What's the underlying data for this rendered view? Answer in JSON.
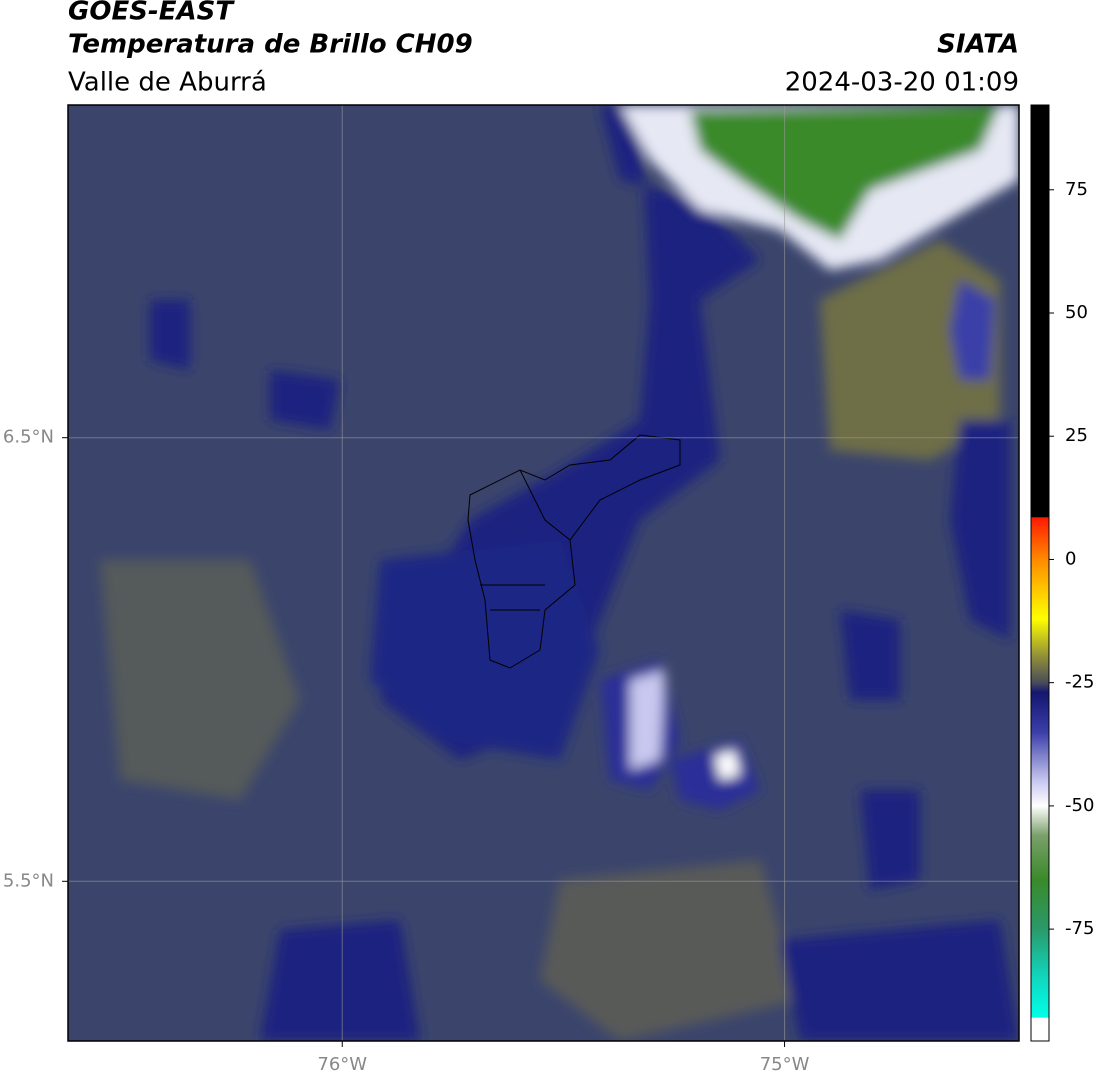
{
  "header": {
    "title": "GOES-EAST",
    "subtitle": "Temperatura de Brillo CH09",
    "region": "Valle de Aburrá",
    "source": "SIATA",
    "datetime": "2024-03-20 01:09"
  },
  "map": {
    "xlim": [
      -76.62,
      -74.47
    ],
    "ylim": [
      5.14,
      7.25
    ],
    "xticks": [
      {
        "value": -76,
        "label": "76°W"
      },
      {
        "value": -75,
        "label": "75°W"
      }
    ],
    "yticks": [
      {
        "value": 6.5,
        "label": "6.5°N"
      },
      {
        "value": 5.5,
        "label": "5.5°N"
      }
    ],
    "grid": true
  },
  "colorbar": {
    "range": [
      -97.7,
      92.2
    ],
    "ticks": [
      75,
      50,
      25,
      0,
      -25,
      -50,
      -75
    ],
    "stops": [
      {
        "value": 92.2,
        "color": "#000000"
      },
      {
        "value": 8.6,
        "color": "#000000"
      },
      {
        "value": 8.5,
        "color": "#ff1a00"
      },
      {
        "value": 0,
        "color": "#ff8a00"
      },
      {
        "value": -12,
        "color": "#ffff00"
      },
      {
        "value": -20,
        "color": "#8c8a3a"
      },
      {
        "value": -25,
        "color": "#4a4c5a"
      },
      {
        "value": -27,
        "color": "#141670"
      },
      {
        "value": -35,
        "color": "#3a3ea8"
      },
      {
        "value": -45,
        "color": "#c8c8f0"
      },
      {
        "value": -50,
        "color": "#ffffff"
      },
      {
        "value": -56,
        "color": "#7aa06a"
      },
      {
        "value": -65,
        "color": "#3a8a2a"
      },
      {
        "value": -75,
        "color": "#2a9a6a"
      },
      {
        "value": -85,
        "color": "#10d8c0"
      },
      {
        "value": -92.9,
        "color": "#00ffe8"
      },
      {
        "value": -93,
        "color": "#ffffff"
      },
      {
        "value": -97.7,
        "color": "#ffffff"
      }
    ]
  }
}
